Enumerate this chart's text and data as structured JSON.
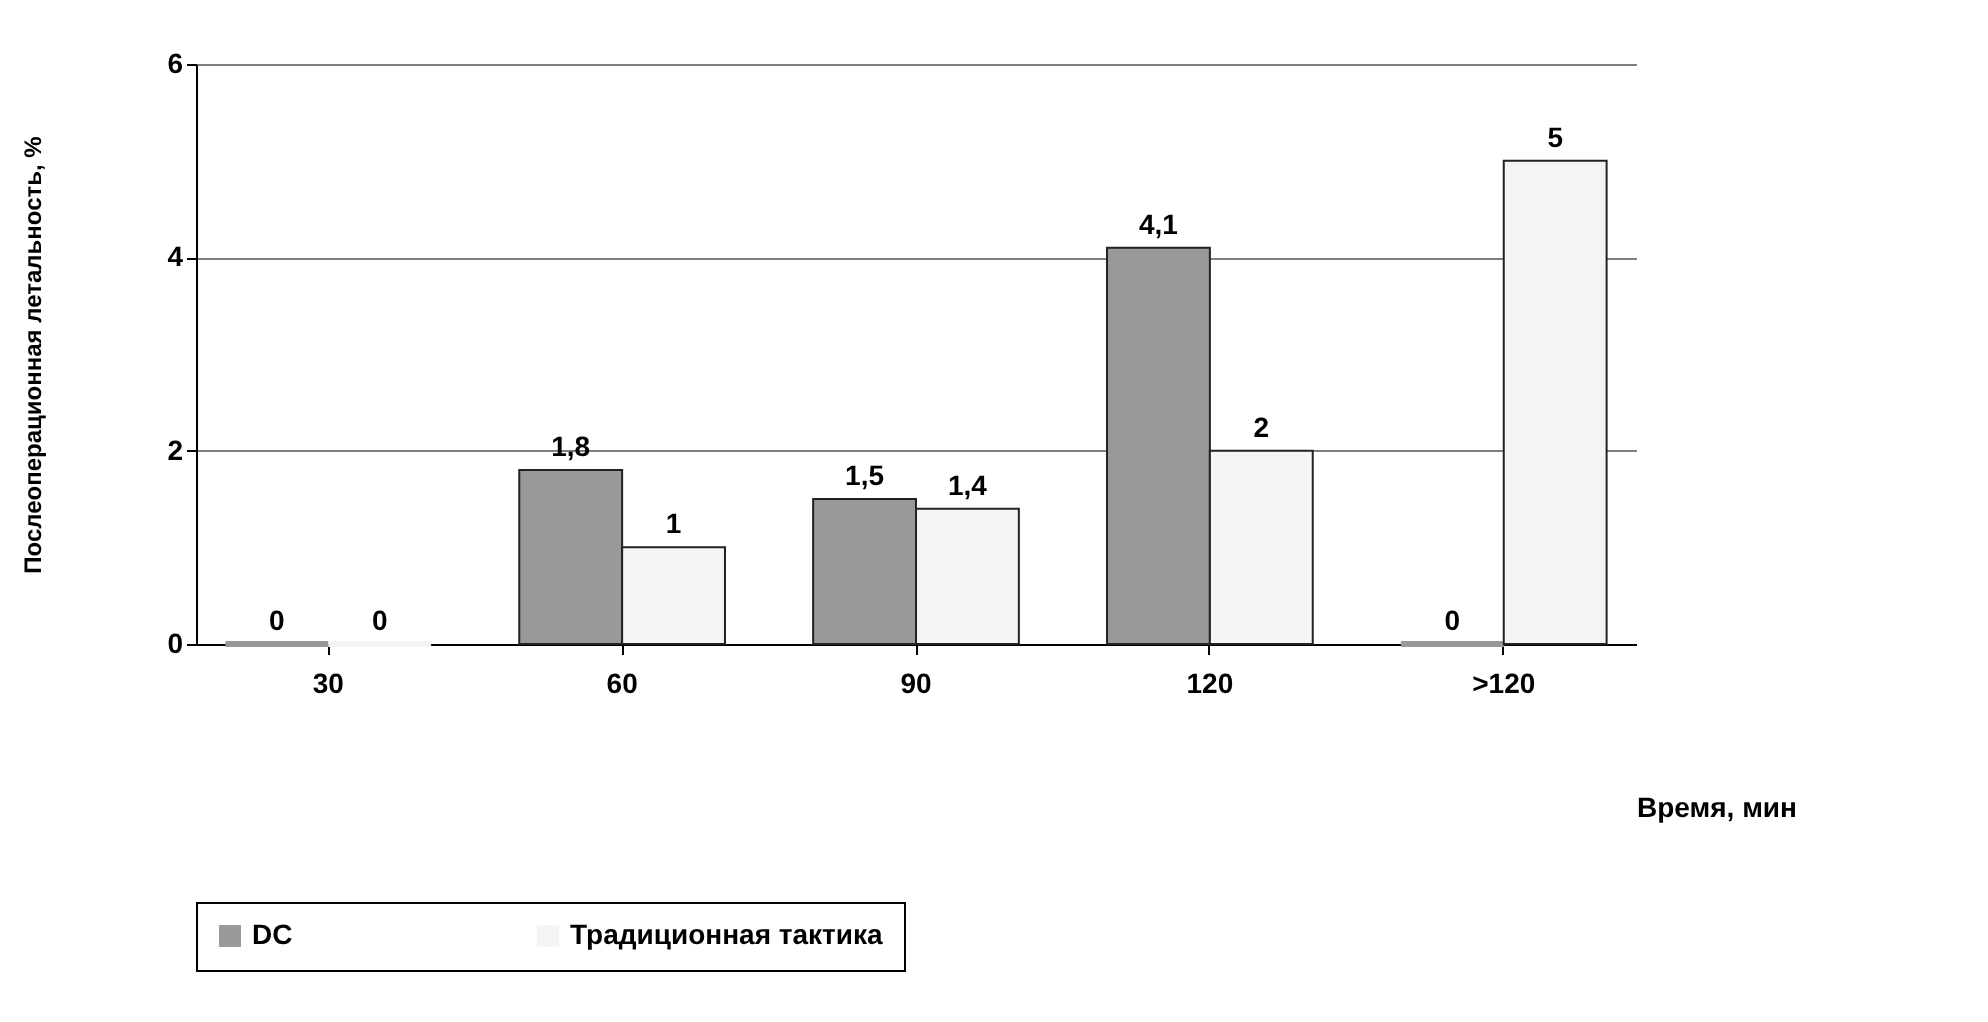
{
  "chart_data": {
    "type": "bar",
    "xlabel": "Время, мин",
    "ylabel": "Послеоперационная летальность, %",
    "categories": [
      "30",
      "60",
      "90",
      "120",
      ">120"
    ],
    "series": [
      {
        "name": "DC",
        "color": "#999999",
        "values": [
          0,
          1.8,
          1.5,
          4.1,
          0
        ],
        "value_labels": [
          "0",
          "1,8",
          "1,5",
          "4,1",
          "0"
        ]
      },
      {
        "name": "Традиционная тактика",
        "color": "#f4f4f4",
        "values": [
          0,
          1,
          1.4,
          2,
          5
        ],
        "value_labels": [
          "0",
          "1",
          "1,4",
          "2",
          "5"
        ]
      }
    ],
    "ylim": [
      0,
      6
    ],
    "yticks": [
      0,
      2,
      4,
      6
    ],
    "grid": "y",
    "legend": "bottom"
  }
}
